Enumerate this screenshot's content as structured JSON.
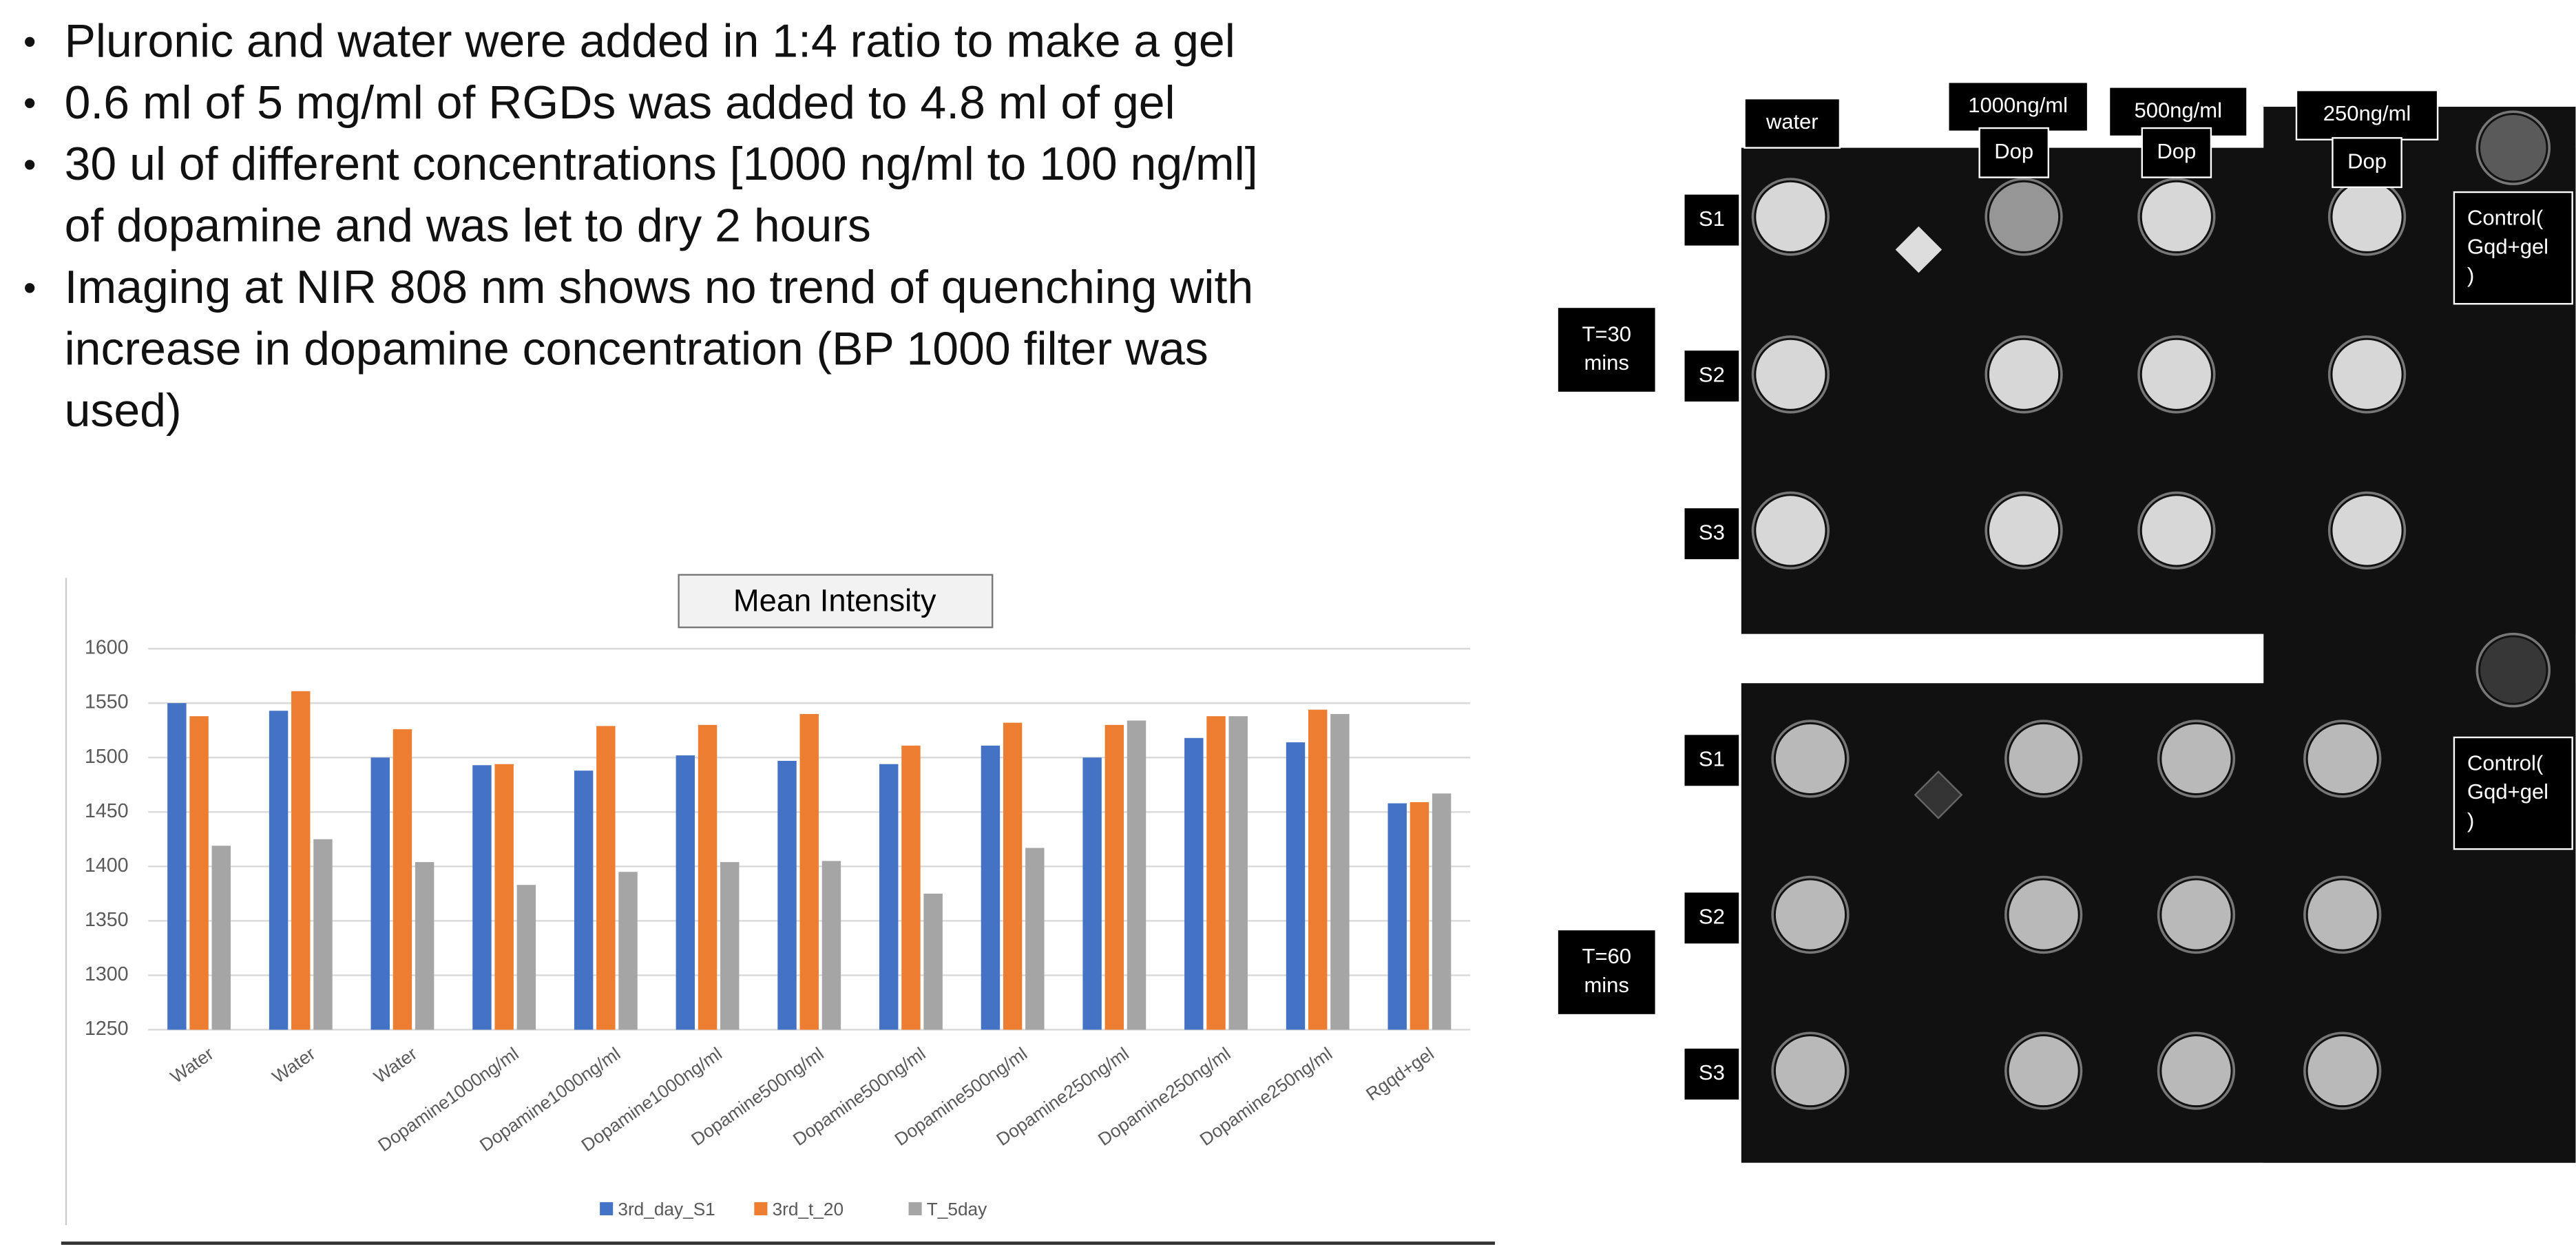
{
  "bullets": [
    [
      "Pluronic and water were added in 1:4 ratio to make a gel"
    ],
    [
      "0.6 ml of 5 mg/ml of RGDs was added to 4.8 ml of gel"
    ],
    [
      "30 ul of different concentrations [1000 ng/ml to 100 ng/ml]",
      "of dopamine and was let to dry 2 hours"
    ],
    [
      "Imaging at NIR 808 nm shows no trend of quenching with",
      "increase in dopamine concentration (BP 1000 filter was",
      "used)"
    ]
  ],
  "chart_data": {
    "type": "bar",
    "title": "Mean Intensity",
    "categories": [
      "Water",
      "Water",
      "Water",
      "Dopamine1000ng/ml",
      "Dopamine1000ng/ml",
      "Dopamine1000ng/ml",
      "Dopamine500ng/ml",
      "Dopamine500ng/ml",
      "Dopamine500ng/ml",
      "Dopamine250ng/ml",
      "Dopamine250ng/ml",
      "Dopamine250ng/ml",
      "Rgqd+gel"
    ],
    "series": [
      {
        "name": "3rd_day_S1",
        "color": "#4472c4",
        "values": [
          1550,
          1543,
          1500,
          1493,
          1488,
          1502,
          1497,
          1494,
          1511,
          1500,
          1518,
          1514,
          1458
        ]
      },
      {
        "name": "3rd_t_20",
        "color": "#ed7d31",
        "values": [
          1538,
          1561,
          1526,
          1494,
          1529,
          1530,
          1540,
          1511,
          1532,
          1530,
          1538,
          1544,
          1459
        ]
      },
      {
        "name": "T_5day",
        "color": "#a5a5a5",
        "values": [
          1419,
          1425,
          1404,
          1383,
          1395,
          1404,
          1405,
          1375,
          1417,
          1534,
          1538,
          1540,
          1467
        ]
      }
    ],
    "ylim": [
      1250,
      1600
    ],
    "yticks": [
      1250,
      1300,
      1350,
      1400,
      1450,
      1500,
      1550,
      1600
    ],
    "grid": true,
    "legend": "bottom"
  },
  "image_labels": {
    "water": "water",
    "conc": [
      "1000ng/ml",
      "500ng/ml",
      "250ng/ml"
    ],
    "dop": [
      "Dop",
      "Dop",
      "Dop"
    ],
    "samples_top": [
      "S1",
      "S2",
      "S3"
    ],
    "samples_bottom": [
      "S1",
      "S2",
      "S3"
    ],
    "time_top": [
      "T=30",
      "mins"
    ],
    "time_bottom": [
      "T=60",
      "mins"
    ],
    "control_top": [
      "Control(",
      "Gqd+gel",
      ")"
    ],
    "control_bottom": [
      "Control(",
      "Gqd+gel",
      ")"
    ]
  }
}
